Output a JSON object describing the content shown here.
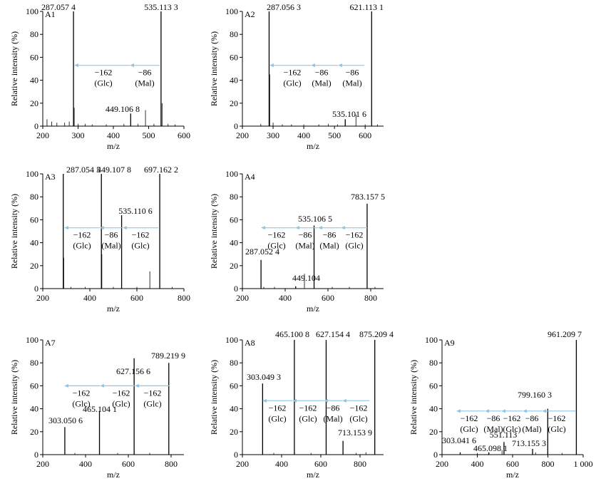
{
  "chart_data": [
    {
      "id": "A1",
      "type": "bar",
      "panel_label": "A1",
      "xlabel": "m/z",
      "ylabel": "Relative intensity (%)",
      "xlim": [
        200,
        600
      ],
      "ylim": [
        0,
        100
      ],
      "xticks": [
        200,
        300,
        400,
        500,
        600
      ],
      "xtick_labels": [
        "200",
        "300",
        "400",
        "500",
        "600"
      ],
      "yticks": [
        0,
        20,
        40,
        60,
        80,
        100
      ],
      "ytick_labels": [
        "0",
        "20",
        "40",
        "60",
        "80",
        "100"
      ],
      "peaks": [
        {
          "mz": 287.0574,
          "intensity": 100,
          "label": "287.057 4"
        },
        {
          "mz": 535.1133,
          "intensity": 100,
          "label": "535.113 3"
        },
        {
          "mz": 449.1068,
          "intensity": 11,
          "label": "449.106 8"
        }
      ],
      "minor_peaks": [
        [
          212,
          6
        ],
        [
          225,
          4
        ],
        [
          240,
          3
        ],
        [
          262,
          3
        ],
        [
          275,
          4
        ],
        [
          289,
          16
        ],
        [
          300,
          2
        ],
        [
          320,
          2
        ],
        [
          340,
          1.5
        ],
        [
          380,
          1.5
        ],
        [
          430,
          2
        ],
        [
          470,
          2
        ],
        [
          491,
          14
        ],
        [
          515,
          2
        ],
        [
          538,
          20
        ],
        [
          555,
          2
        ],
        [
          575,
          1.5
        ]
      ],
      "losses": [
        {
          "delta": "−162",
          "name": "(Glc)"
        },
        {
          "delta": "−86",
          "name": "(Mal)"
        }
      ],
      "loss_level": 53
    },
    {
      "id": "A2",
      "type": "bar",
      "panel_label": "A2",
      "xlabel": "m/z",
      "ylabel": "Relative intensity (%)",
      "xlim": [
        200,
        660
      ],
      "ylim": [
        0,
        100
      ],
      "xticks": [
        200,
        300,
        400,
        500,
        600
      ],
      "xtick_labels": [
        "200",
        "300",
        "400",
        "500",
        "600"
      ],
      "yticks": [
        0,
        20,
        40,
        60,
        80,
        100
      ],
      "ytick_labels": [
        "0",
        "20",
        "40",
        "60",
        "80",
        "100"
      ],
      "peaks": [
        {
          "mz": 287.0563,
          "intensity": 100,
          "label": "287.056 3"
        },
        {
          "mz": 621.1131,
          "intensity": 100,
          "label": "621.113 1"
        },
        {
          "mz": 535.1016,
          "intensity": 6,
          "label": "535.101 6"
        }
      ],
      "minor_peaks": [
        [
          289,
          45
        ],
        [
          260,
          2
        ],
        [
          300,
          3
        ],
        [
          330,
          1.5
        ],
        [
          360,
          1.5
        ],
        [
          400,
          1.5
        ],
        [
          449,
          1.5
        ],
        [
          480,
          2
        ],
        [
          510,
          1.5
        ],
        [
          570,
          10
        ],
        [
          600,
          1.5
        ],
        [
          640,
          1.5
        ]
      ],
      "losses": [
        {
          "delta": "−162",
          "name": "(Glc)"
        },
        {
          "delta": "−86",
          "name": "(Mal)"
        },
        {
          "delta": "−86",
          "name": "(Mal)"
        }
      ],
      "loss_level": 53
    },
    {
      "id": "A3",
      "type": "bar",
      "panel_label": "A3",
      "xlabel": "m/z",
      "ylabel": "Relative intensity (%)",
      "xlim": [
        200,
        800
      ],
      "ylim": [
        0,
        100
      ],
      "xticks": [
        200,
        400,
        600,
        800
      ],
      "xtick_labels": [
        "200",
        "400",
        "600",
        "800"
      ],
      "yticks": [
        0,
        20,
        40,
        60,
        80,
        100
      ],
      "ytick_labels": [
        "0",
        "20",
        "40",
        "60",
        "80",
        "100"
      ],
      "peaks": [
        {
          "mz": 287.0545,
          "intensity": 100,
          "label": "287.054 5"
        },
        {
          "mz": 449.1078,
          "intensity": 100,
          "label": "449.107 8"
        },
        {
          "mz": 697.1622,
          "intensity": 100,
          "label": "697.162 2"
        },
        {
          "mz": 535.1106,
          "intensity": 64,
          "label": "535.110 6"
        }
      ],
      "minor_peaks": [
        [
          289,
          27
        ],
        [
          451,
          30
        ],
        [
          655,
          15
        ],
        [
          320,
          1.5
        ],
        [
          380,
          1.5
        ],
        [
          500,
          1.5
        ],
        [
          600,
          1.5
        ],
        [
          750,
          1.5
        ]
      ],
      "losses": [
        {
          "delta": "−162",
          "name": "(Glc)"
        },
        {
          "delta": "−86",
          "name": "(Mal)"
        },
        {
          "delta": "−162",
          "name": "(Glc)"
        }
      ],
      "loss_level": 53
    },
    {
      "id": "A4",
      "type": "bar",
      "panel_label": "A4",
      "xlabel": "m/z",
      "ylabel": "Relative intensity (%)",
      "xlim": [
        200,
        860
      ],
      "ylim": [
        0,
        100
      ],
      "xticks": [
        200,
        400,
        600,
        800
      ],
      "xtick_labels": [
        "200",
        "400",
        "600",
        "800"
      ],
      "yticks": [
        0,
        20,
        40,
        60,
        80,
        100
      ],
      "ytick_labels": [
        "0",
        "20",
        "40",
        "60",
        "80",
        "100"
      ],
      "peaks": [
        {
          "mz": 783.1575,
          "intensity": 74,
          "label": "783.157 5"
        },
        {
          "mz": 535.1065,
          "intensity": 55,
          "label": "535.106 5"
        },
        {
          "mz": 287.0524,
          "intensity": 25,
          "label": "287.052 4"
        },
        {
          "mz": 449.104,
          "intensity": 2,
          "label": "449.104"
        }
      ],
      "minor_peaks": [
        [
          490,
          13
        ],
        [
          300,
          1.5
        ],
        [
          350,
          1.5
        ],
        [
          620,
          1.5
        ],
        [
          700,
          1.5
        ],
        [
          820,
          1.5
        ]
      ],
      "losses": [
        {
          "delta": "−162",
          "name": "(Glc)"
        },
        {
          "delta": "−86",
          "name": "(Mal)"
        },
        {
          "delta": "−86",
          "name": "(Mal)"
        },
        {
          "delta": "−162",
          "name": "(Glc)"
        }
      ],
      "loss_level": 53
    },
    {
      "id": "A7",
      "type": "bar",
      "panel_label": "A7",
      "xlabel": "m/z",
      "ylabel": "Relative intensity (%)",
      "xlim": [
        200,
        860
      ],
      "ylim": [
        0,
        100
      ],
      "xticks": [
        200,
        400,
        600,
        800
      ],
      "xtick_labels": [
        "200",
        "400",
        "600",
        "800"
      ],
      "yticks": [
        0,
        20,
        40,
        60,
        80,
        100
      ],
      "ytick_labels": [
        "0",
        "20",
        "40",
        "60",
        "80",
        "100"
      ],
      "peaks": [
        {
          "mz": 627.1566,
          "intensity": 84,
          "label": "627.156 6"
        },
        {
          "mz": 789.2199,
          "intensity": 80,
          "label": "789.219 9"
        },
        {
          "mz": 465.1041,
          "intensity": 38,
          "label": "465.104 1"
        },
        {
          "mz": 303.0506,
          "intensity": 24,
          "label": "303.050 6"
        }
      ],
      "minor_peaks": [
        [
          350,
          1.5
        ],
        [
          550,
          1.5
        ],
        [
          700,
          1.5
        ]
      ],
      "losses": [
        {
          "delta": "−162",
          "name": "(Glc)"
        },
        {
          "delta": "−162",
          "name": "(Glc)"
        },
        {
          "delta": "−162",
          "name": "(Glc)"
        }
      ],
      "loss_level": 60
    },
    {
      "id": "A8",
      "type": "bar",
      "panel_label": "A8",
      "xlabel": "m/z",
      "ylabel": "Relative intensity (%)",
      "xlim": [
        200,
        920
      ],
      "ylim": [
        0,
        100
      ],
      "xticks": [
        200,
        400,
        600,
        800
      ],
      "xtick_labels": [
        "200",
        "400",
        "600",
        "800"
      ],
      "yticks": [
        0,
        20,
        40,
        60,
        80,
        100
      ],
      "ytick_labels": [
        "0",
        "20",
        "40",
        "60",
        "80",
        "100"
      ],
      "peaks": [
        {
          "mz": 465.1008,
          "intensity": 100,
          "label": "465.100 8"
        },
        {
          "mz": 627.1544,
          "intensity": 100,
          "label": "627.154 4"
        },
        {
          "mz": 875.2094,
          "intensity": 100,
          "label": "875.209 4"
        },
        {
          "mz": 303.0493,
          "intensity": 62,
          "label": "303.049 3"
        },
        {
          "mz": 713.1539,
          "intensity": 12,
          "label": "713.153 9"
        }
      ],
      "minor_peaks": [
        [
          830,
          2
        ],
        [
          360,
          1.5
        ],
        [
          550,
          1.5
        ],
        [
          780,
          1.5
        ]
      ],
      "losses": [
        {
          "delta": "−162",
          "name": "(Glc)"
        },
        {
          "delta": "−162",
          "name": "(Glc)"
        },
        {
          "delta": "−86",
          "name": "(Mal)"
        },
        {
          "delta": "−162",
          "name": "(Glc)"
        }
      ],
      "loss_level": 47
    },
    {
      "id": "A9",
      "type": "bar",
      "panel_label": "A9",
      "xlabel": "m/z",
      "ylabel": "Relative intensity (%)",
      "xlim": [
        200,
        1000
      ],
      "ylim": [
        0,
        100
      ],
      "xticks": [
        200,
        400,
        600,
        800,
        1000
      ],
      "xtick_labels": [
        "200",
        "400",
        "600",
        "800",
        "1 000"
      ],
      "yticks": [
        0,
        20,
        40,
        60,
        80,
        100
      ],
      "ytick_labels": [
        "0",
        "20",
        "40",
        "60",
        "80",
        "100"
      ],
      "peaks": [
        {
          "mz": 961.2097,
          "intensity": 100,
          "label": "961.209 7"
        },
        {
          "mz": 799.1603,
          "intensity": 40,
          "label": "799.160 3"
        },
        {
          "mz": 551.113,
          "intensity": 11,
          "label": "551.113"
        },
        {
          "mz": 303.0416,
          "intensity": 2,
          "label": "303.041 6"
        },
        {
          "mz": 465.0981,
          "intensity": 2,
          "label": "465.098 1"
        },
        {
          "mz": 713.1553,
          "intensity": 5,
          "label": "713.155 3"
        }
      ],
      "minor_peaks": [
        [
          540,
          4
        ],
        [
          730,
          2
        ],
        [
          880,
          1.5
        ],
        [
          400,
          1.5
        ]
      ],
      "losses": [
        {
          "delta": "−162",
          "name": "(Glc)"
        },
        {
          "delta": "−86",
          "name": "(Mal)"
        },
        {
          "delta": "−162",
          "name": "(Glc)"
        },
        {
          "delta": "−86",
          "name": "(Mal)"
        },
        {
          "delta": "−162",
          "name": "(Glc)"
        }
      ],
      "loss_level": 38
    }
  ],
  "colors": {
    "axis": "#000000",
    "peak": "#000000",
    "loss_arrow": "#8ec6e6"
  }
}
